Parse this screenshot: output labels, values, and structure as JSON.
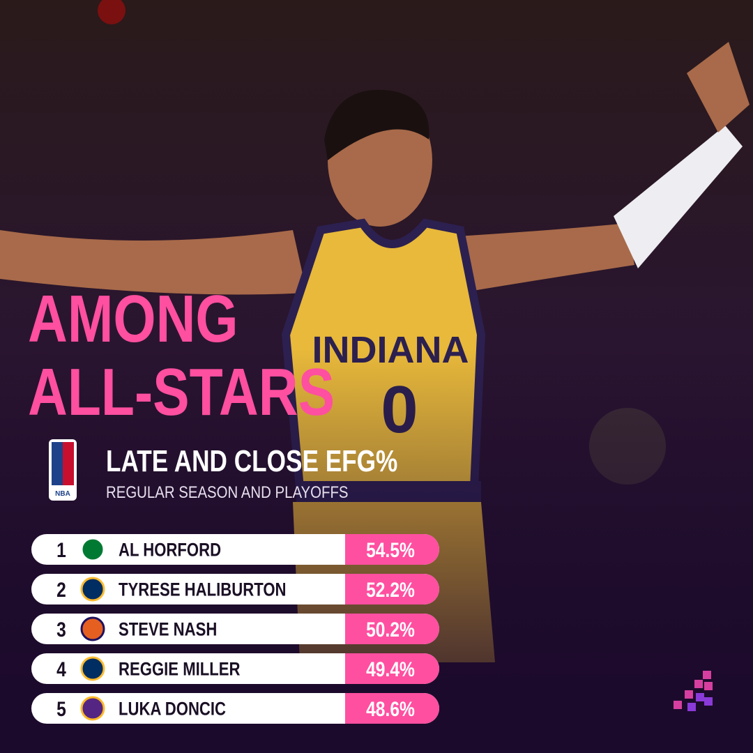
{
  "headline": [
    "AMONG",
    "ALL-STARS"
  ],
  "logo": "NBA",
  "title": "LATE AND CLOSE EFG%",
  "subtitle": "REGULAR SEASON AND PLAYOFFS",
  "jersey": {
    "team": "INDIANA",
    "number": "0"
  },
  "table": {
    "rows": [
      [
        "1",
        "AL HORFORD",
        "54.5%"
      ],
      [
        "2",
        "TYRESE HALIBURTON",
        "52.2%"
      ],
      [
        "3",
        "STEVE NASH",
        "50.2%"
      ],
      [
        "4",
        "REGGIE MILLER",
        "49.4%"
      ],
      [
        "5",
        "LUKA DONCIC",
        "48.6%"
      ]
    ]
  }
}
